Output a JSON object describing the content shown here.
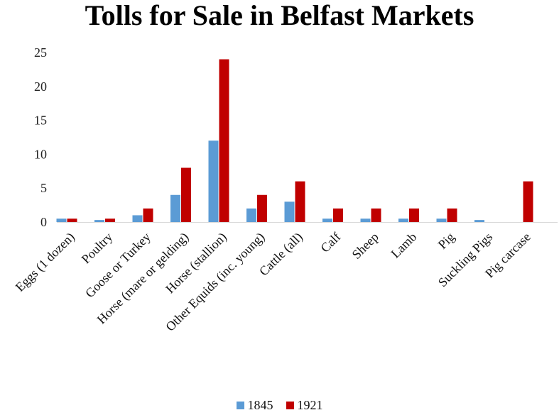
{
  "chart_data": {
    "type": "bar",
    "title": "Tolls for Sale in Belfast Markets",
    "xlabel": "",
    "ylabel": "",
    "categories": [
      "Eggs (1 dozen)",
      "Poultry",
      "Goose or Turkey",
      "Horse (mare or gelding)",
      "Horse (stallion)",
      "Other Equids (inc. young)",
      "Cattle (all)",
      "Calf",
      "Sheep",
      "Lamb",
      "Pig",
      "Suckling Pigs",
      "Pig carcase"
    ],
    "series": [
      {
        "name": "1845",
        "color": "#5b9bd5",
        "values": [
          0.5,
          0.3,
          1,
          4,
          12,
          2,
          3,
          0.5,
          0.5,
          0.5,
          0.5,
          0.3,
          0
        ]
      },
      {
        "name": "1921",
        "color": "#c00000",
        "values": [
          0.5,
          0.5,
          2,
          8,
          24,
          4,
          6,
          2,
          2,
          2,
          2,
          0,
          6
        ]
      }
    ],
    "ylim": [
      0,
      25
    ],
    "yticks": [
      "0",
      "5",
      "10",
      "15",
      "20",
      "25"
    ],
    "grid": false,
    "legend": "bottom"
  }
}
